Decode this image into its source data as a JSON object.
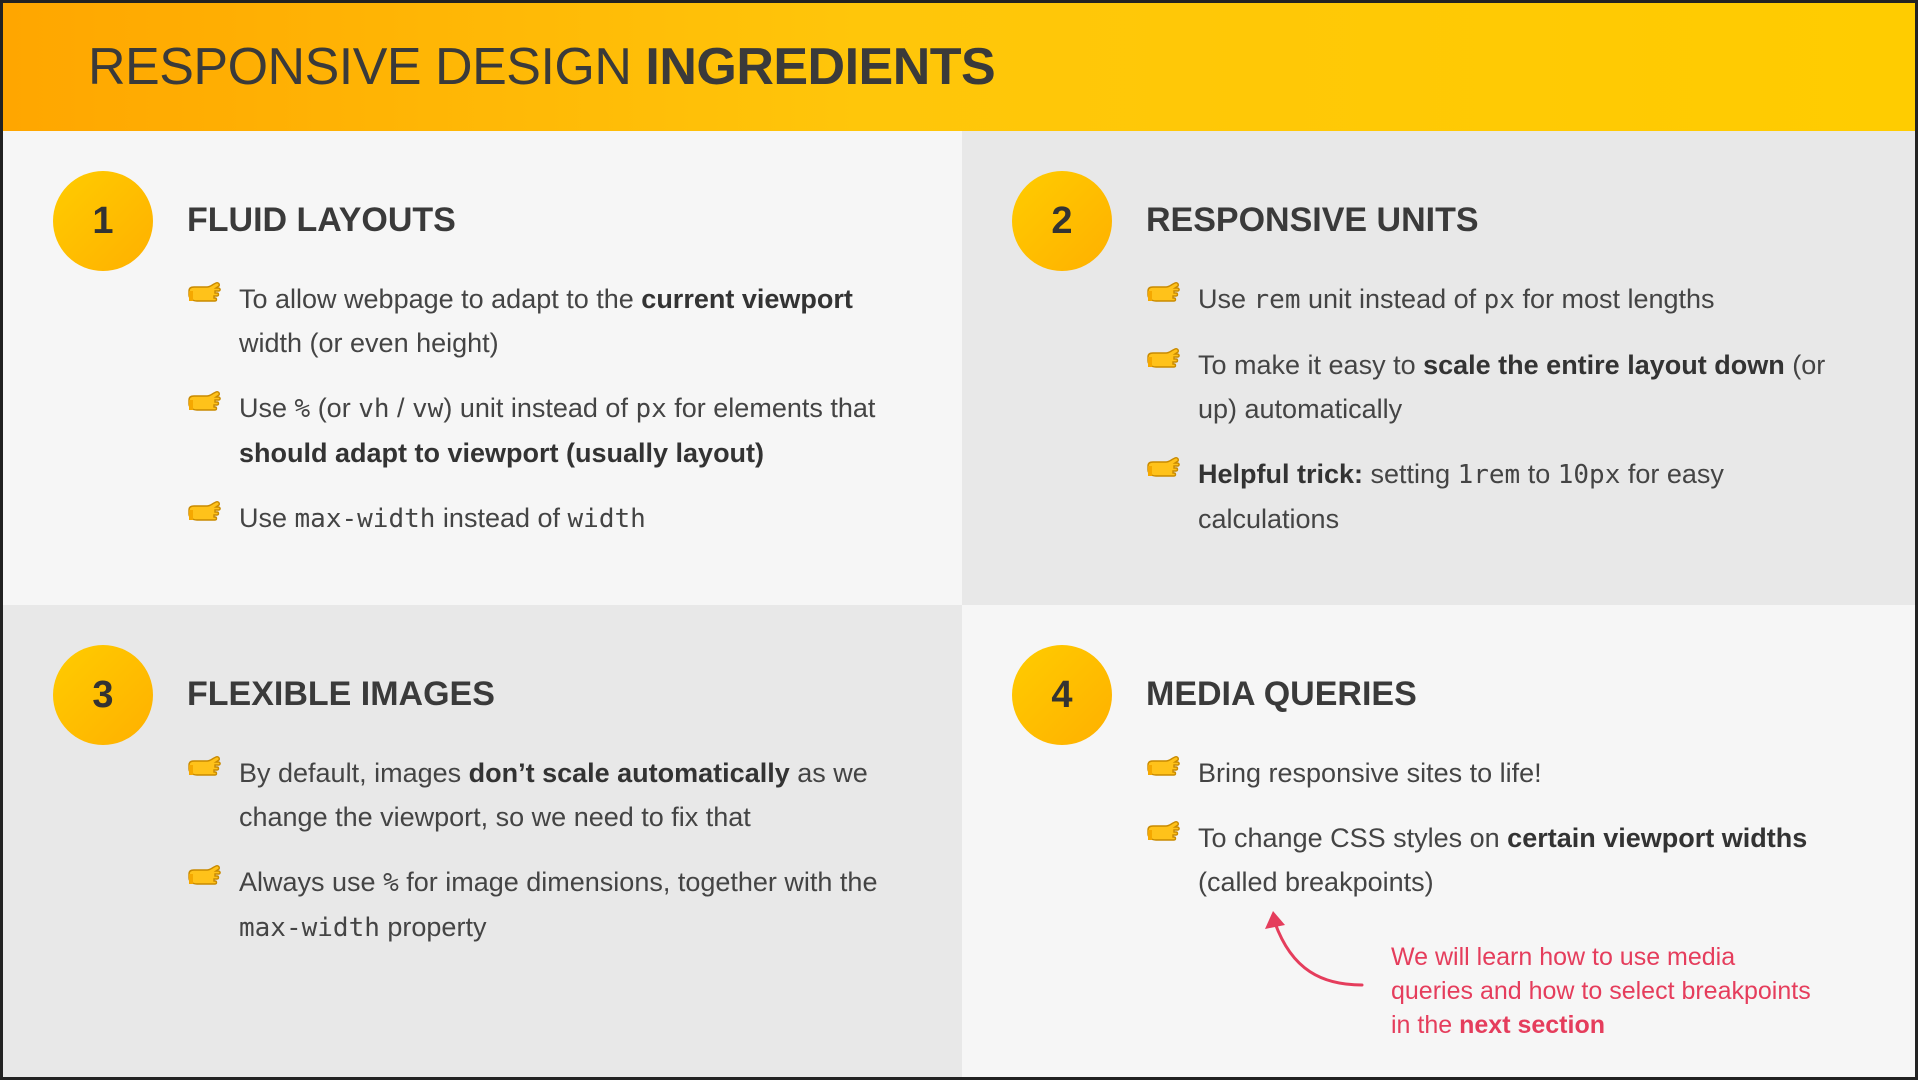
{
  "header": {
    "title_light": "RESPONSIVE DESIGN",
    "title_bold": "INGREDIENTS"
  },
  "colors": {
    "accent": "#ffc107",
    "accent_dark": "#ffa600",
    "text": "#3a3a3a",
    "note": "#e53d5c"
  },
  "sections": [
    {
      "number": "1",
      "title": "FLUID LAYOUTS",
      "bullets": [
        {
          "parts": [
            "To allow webpage to adapt to the ",
            "current viewport",
            " width (or even height)"
          ]
        },
        {
          "parts": [
            "Use ",
            "%",
            " (or ",
            "vh",
            " / ",
            "vw",
            ") unit instead of ",
            "px",
            " for elements that ",
            "should adapt to viewport (usually layout)"
          ]
        },
        {
          "parts": [
            "Use ",
            "max-width",
            " instead of ",
            "width"
          ]
        }
      ]
    },
    {
      "number": "2",
      "title": "RESPONSIVE UNITS",
      "bullets": [
        {
          "parts": [
            "Use ",
            "rem",
            " unit instead of ",
            "px",
            " for most lengths"
          ]
        },
        {
          "parts": [
            "To make it easy to ",
            "scale the entire layout down",
            " (or up) automatically"
          ]
        },
        {
          "parts": [
            "Helpful trick:",
            " setting ",
            "1rem",
            " to ",
            "10px",
            " for easy calculations"
          ]
        }
      ]
    },
    {
      "number": "3",
      "title": "FLEXIBLE IMAGES",
      "bullets": [
        {
          "parts": [
            "By default, images ",
            "don’t scale automatically",
            " as we change the viewport, so we need to fix that"
          ]
        },
        {
          "parts": [
            "Always use ",
            "%",
            " for image dimensions, together with the ",
            "max-width",
            " property"
          ]
        }
      ]
    },
    {
      "number": "4",
      "title": "MEDIA QUERIES",
      "bullets": [
        {
          "parts": [
            "Bring responsive sites to life!"
          ]
        },
        {
          "parts": [
            "To change CSS styles on ",
            "certain viewport widths",
            " (called breakpoints)"
          ]
        }
      ],
      "note": {
        "text": "We will learn how to use media queries and how to select breakpoints in the ",
        "bold": "next section"
      }
    }
  ],
  "icons": {
    "bullet": "pointing-hand-icon",
    "note_arrow": "curved-arrow-icon"
  }
}
